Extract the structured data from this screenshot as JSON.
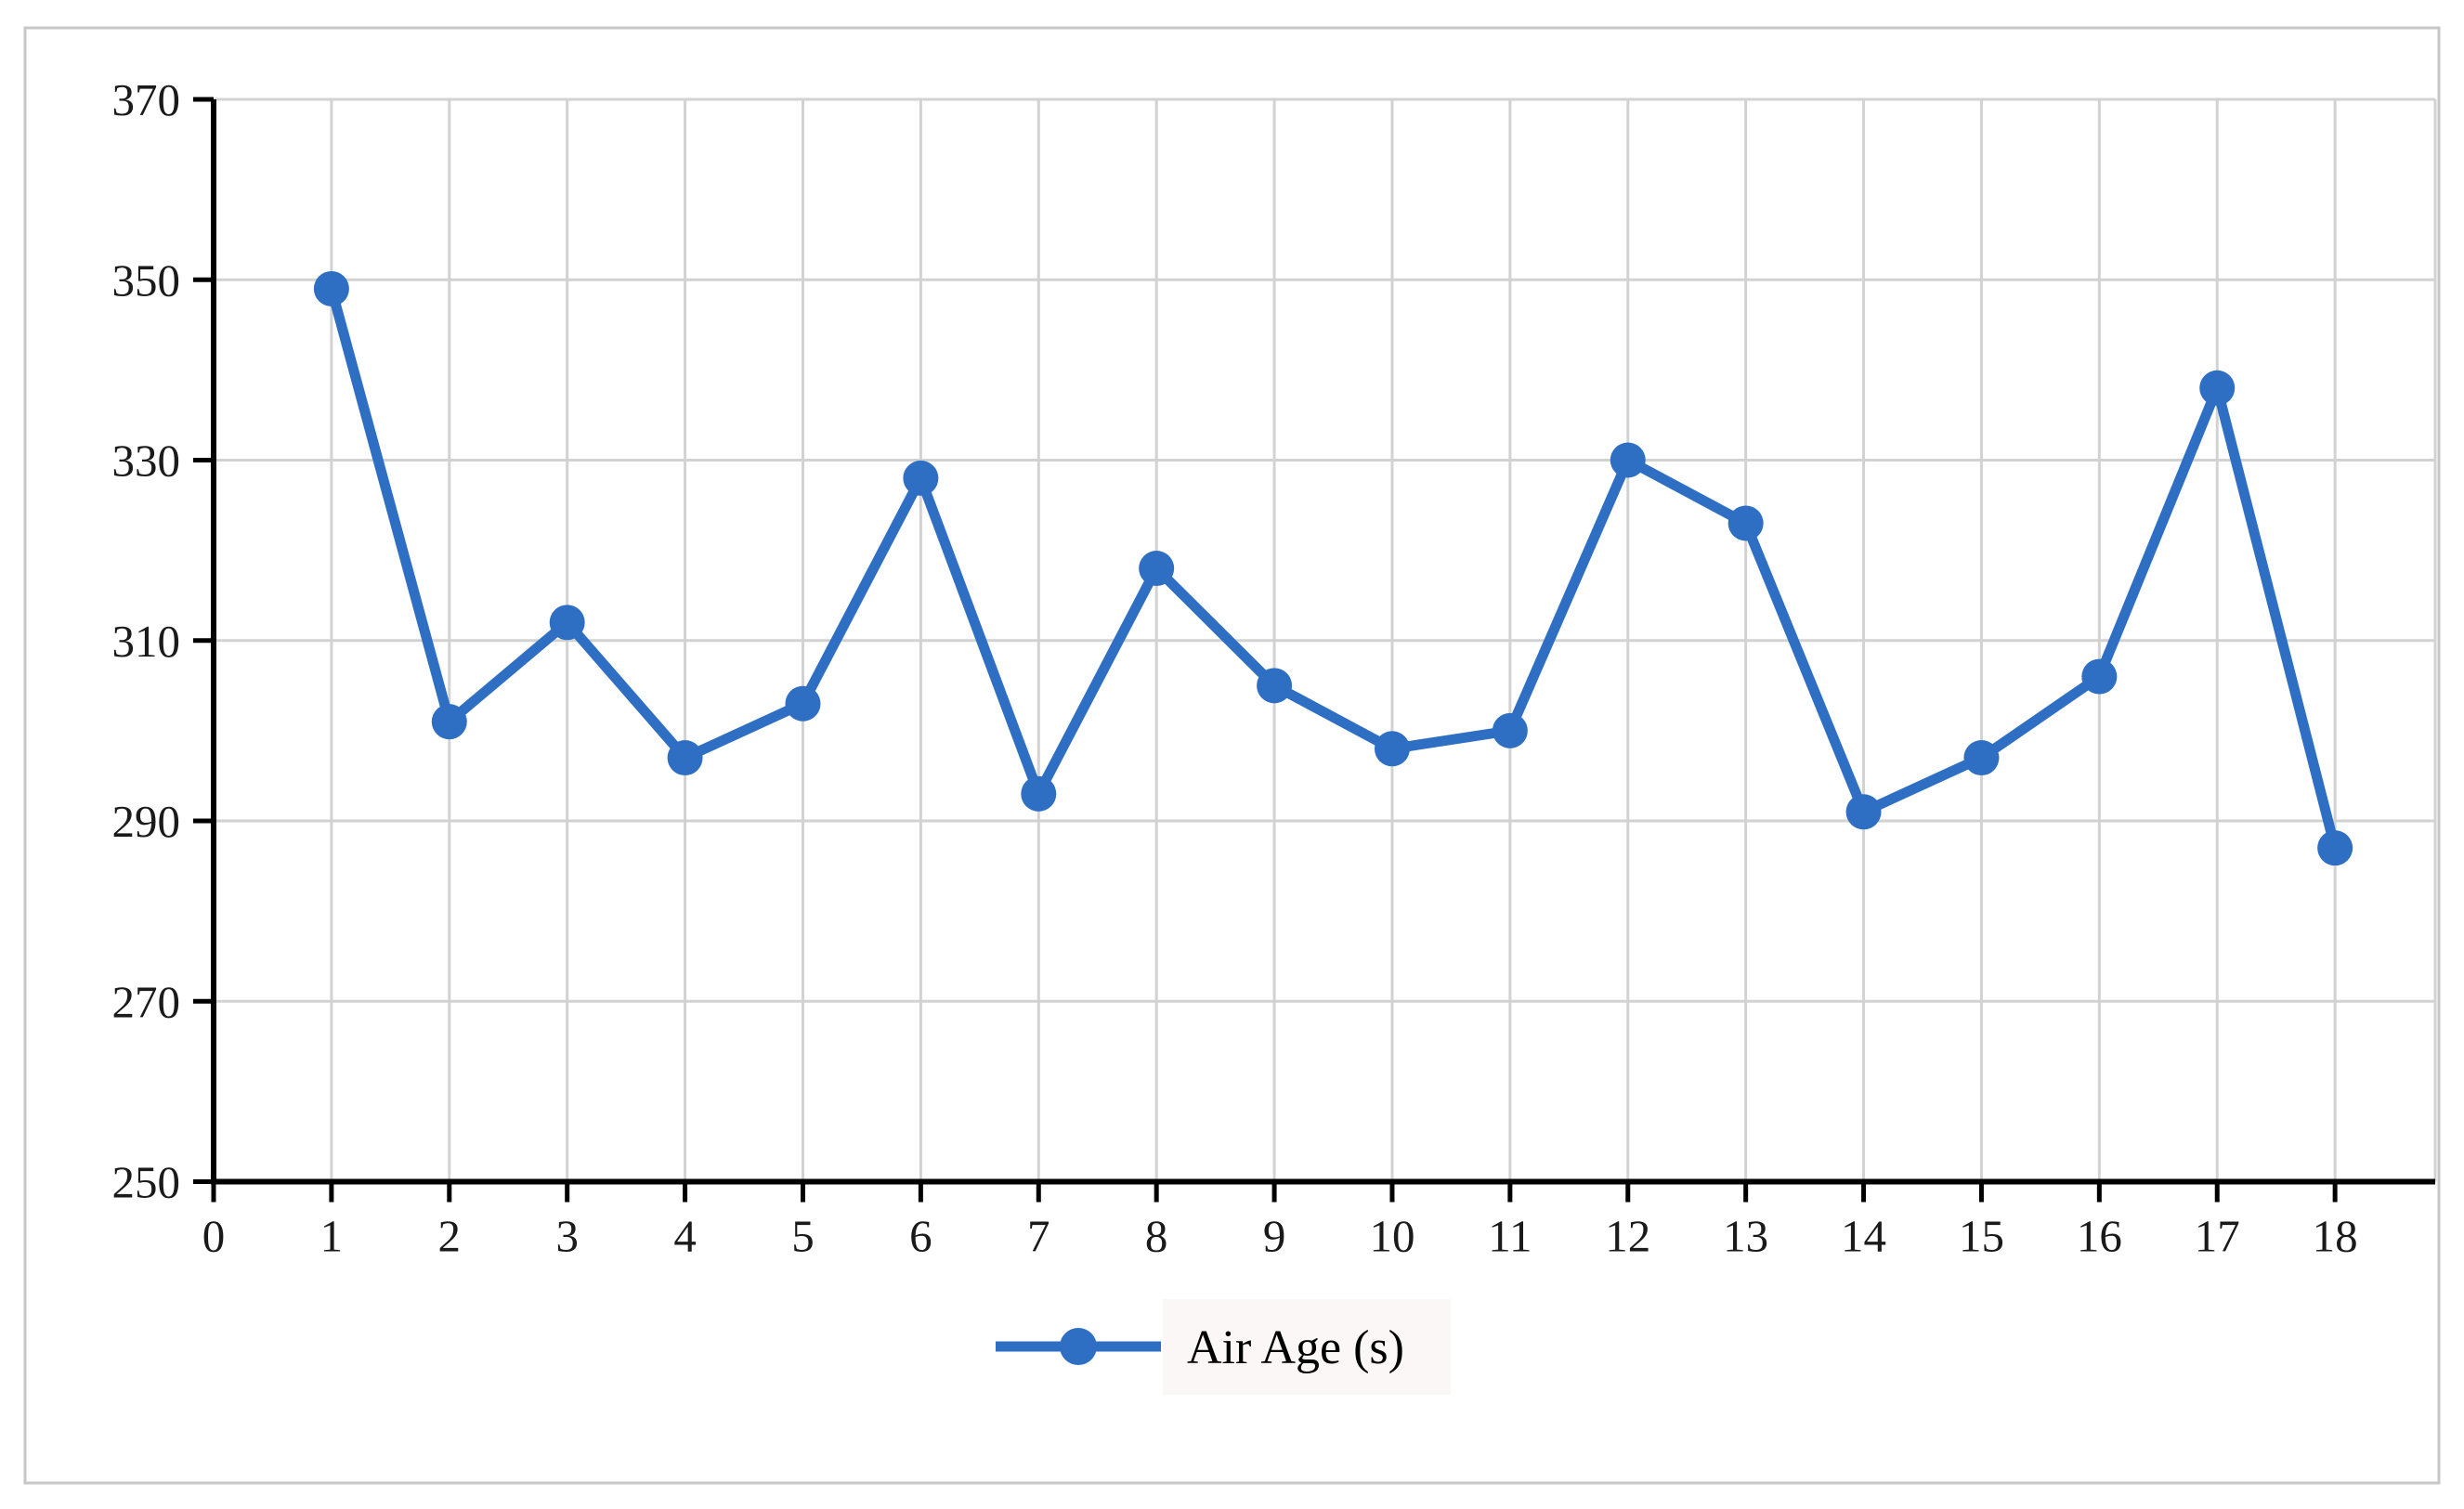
{
  "figure": {
    "background": "#FFFFFF",
    "border_color": "#C7C7C7"
  },
  "chart_data": {
    "type": "line",
    "title": "",
    "xlabel": "",
    "ylabel": "",
    "x": [
      1,
      2,
      3,
      4,
      5,
      6,
      7,
      8,
      9,
      10,
      11,
      12,
      13,
      14,
      15,
      16,
      17,
      18
    ],
    "series": [
      {
        "name": "Air Age (s)",
        "values": [
          349,
          301,
          312,
          297,
          303,
          328,
          293,
          318,
          305,
          298,
          300,
          330,
          323,
          291,
          297,
          306,
          338,
          287
        ]
      }
    ],
    "xlim": [
      0,
      18.85
    ],
    "ylim": [
      250,
      370
    ],
    "xticks": [
      0,
      1,
      2,
      3,
      4,
      5,
      6,
      7,
      8,
      9,
      10,
      11,
      12,
      13,
      14,
      15,
      16,
      17,
      18
    ],
    "yticks": [
      250,
      270,
      290,
      310,
      330,
      350,
      370
    ],
    "grid": true,
    "legend_position": "bottom-center",
    "colors": {
      "line": "#2E6FC4",
      "marker": "#2E6FC4",
      "gridline": "#D2D2D2",
      "axis": "#000000",
      "tick_text": "#1A1A1A",
      "legend_text": "#000000",
      "legend_panel": "#FBF7F6"
    }
  }
}
